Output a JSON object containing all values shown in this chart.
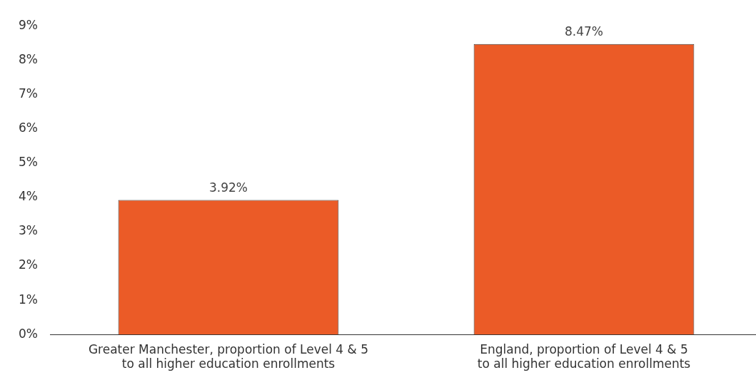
{
  "chart_data": {
    "type": "bar",
    "categories": [
      "Greater Manchester, proportion of Level 4 & 5\nto all higher education enrollments",
      "England, proportion of Level 4 & 5\nto all higher education enrollments"
    ],
    "values": [
      3.92,
      8.47
    ],
    "color": "#eb5b27",
    "value_labels": [
      "3.92%",
      "8.47%"
    ],
    "ylim": [
      0,
      9
    ],
    "yticks": [
      {
        "value": 0,
        "label": "0%"
      },
      {
        "value": 1,
        "label": "1%"
      },
      {
        "value": 2,
        "label": "2%"
      },
      {
        "value": 3,
        "label": "3%"
      },
      {
        "value": 4,
        "label": "4%"
      },
      {
        "value": 5,
        "label": "5%"
      },
      {
        "value": 6,
        "label": "6%"
      },
      {
        "value": 7,
        "label": "7%"
      },
      {
        "value": 8,
        "label": "8%"
      },
      {
        "value": 9,
        "label": "9%"
      }
    ],
    "grid": false,
    "legend": false
  }
}
